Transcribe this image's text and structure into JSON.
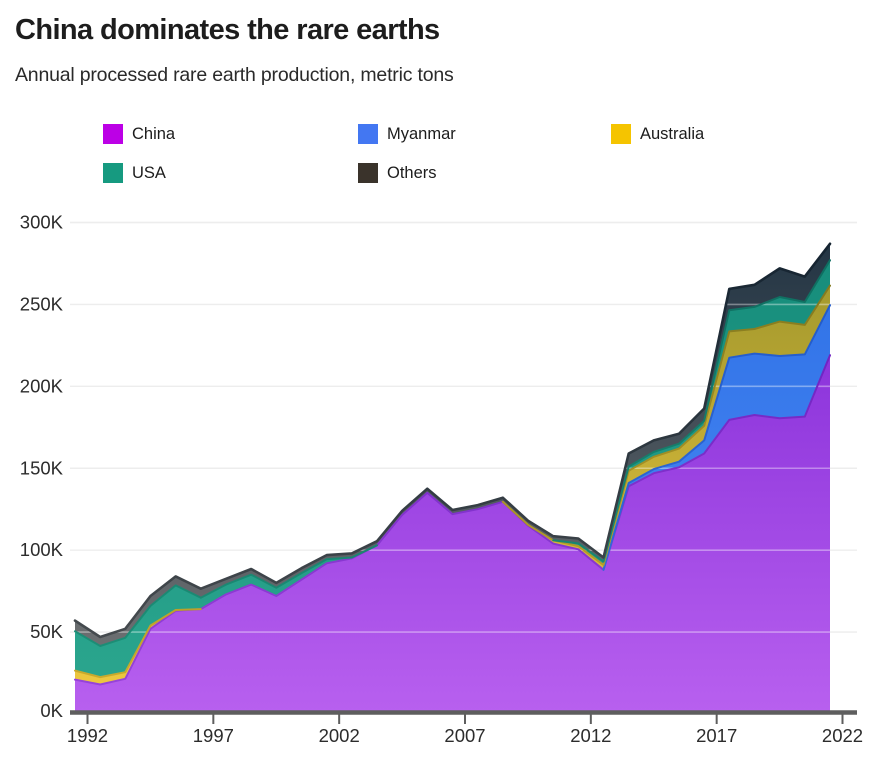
{
  "header": {
    "title": "China dominates the rare earths",
    "subtitle": "Annual processed rare earth production, metric tons"
  },
  "legend": [
    {
      "label": "China",
      "swatch": "#bc00e6"
    },
    {
      "label": "Myanmar",
      "swatch": "#4377f2"
    },
    {
      "label": "Australia",
      "swatch": "#f5c400"
    },
    {
      "label": "USA",
      "swatch": "#169a80"
    },
    {
      "label": "Others",
      "swatch": "#3a332b"
    }
  ],
  "chart_data": {
    "type": "area",
    "stacked": true,
    "title": "China dominates the rare earths",
    "subtitle": "Annual processed rare earth production, metric tons",
    "unit": "thousand metric tons",
    "grid": "horizontal",
    "legend_position": "top",
    "x": [
      1992,
      1993,
      1994,
      1995,
      1996,
      1997,
      1998,
      1999,
      2000,
      2001,
      2002,
      2003,
      2004,
      2005,
      2006,
      2007,
      2008,
      2009,
      2010,
      2011,
      2012,
      2013,
      2014,
      2015,
      2016,
      2017,
      2018,
      2019,
      2020,
      2021,
      2022
    ],
    "x_ticks": [
      1992,
      1997,
      2002,
      2007,
      2012,
      2017,
      2022
    ],
    "y_tick_values": [
      0,
      50,
      100,
      150,
      200,
      250,
      300
    ],
    "y_tick_labels": [
      "0K",
      "50K",
      "100K",
      "150K",
      "200K",
      "250K",
      "300K"
    ],
    "ylim": [
      0,
      300
    ],
    "series": [
      {
        "name": "China",
        "values": [
          21,
          18,
          21.5,
          52,
          63,
          64,
          73,
          79,
          72,
          82,
          92,
          95,
          103,
          121.5,
          135,
          122,
          125,
          129.5,
          115,
          104,
          100.5,
          88,
          139,
          147,
          150.5,
          159,
          179.5,
          182.5,
          180.5,
          181.5,
          219
        ],
        "fill_top": "#7a22d3",
        "fill_bottom": "#b860ef",
        "edge_top": "#5f16b8",
        "edge_bottom": "#9a46db"
      },
      {
        "name": "Myanmar",
        "values": [
          0,
          0,
          0,
          0,
          0,
          0,
          0,
          0,
          0,
          0,
          0,
          0,
          0,
          0,
          0,
          0,
          0,
          0,
          0,
          0,
          0,
          0,
          2,
          2.5,
          3.5,
          8,
          38,
          37.5,
          38,
          38,
          30.5
        ],
        "fill_top": "#2b6ee4",
        "fill_bottom": "#4f8df7",
        "edge_top": "#1c55c6",
        "edge_bottom": "#3a72de"
      },
      {
        "name": "Australia",
        "values": [
          5.5,
          4.5,
          4,
          2,
          0.5,
          0,
          0,
          0,
          0,
          0,
          0,
          0,
          0,
          0,
          0,
          0,
          0,
          0,
          0.5,
          2,
          2,
          3,
          7.5,
          7.5,
          8,
          9,
          16,
          15,
          21,
          18,
          12
        ],
        "fill_top": "#97912a",
        "fill_bottom": "#f2ca40",
        "edge_top": "#76701c",
        "edge_bottom": "#cfae2e"
      },
      {
        "name": "USA",
        "values": [
          24,
          19,
          21,
          12,
          15,
          7,
          6,
          6,
          5,
          4,
          2.5,
          0.5,
          0,
          0,
          0,
          0,
          0,
          0,
          0,
          0,
          1.6,
          2,
          2.5,
          3,
          3,
          3,
          13,
          13.5,
          15,
          14,
          15.5
        ],
        "fill_top": "#148a79",
        "fill_bottom": "#2ca78f",
        "edge_top": "#0c6a5e",
        "edge_bottom": "#1f937a"
      },
      {
        "name": "Others",
        "values": [
          6.5,
          5.5,
          5.5,
          6,
          5.5,
          5.5,
          3.5,
          3.5,
          3,
          3,
          2.5,
          2.5,
          2.5,
          2.5,
          2.5,
          2.5,
          2.5,
          2.5,
          2.5,
          2.5,
          3,
          2.5,
          8,
          7,
          6,
          7.5,
          13,
          13.5,
          17.5,
          15.5,
          10
        ],
        "fill_top": "#1d3040",
        "fill_bottom": "#787878",
        "edge_top": "#10202e",
        "edge_bottom": "#4f5254"
      }
    ]
  },
  "axis_style": {
    "axis_line_color": "#5e5e5e",
    "grid_under_color": "#e3e3e3",
    "grid_over_color": "rgba(255,255,255,0.38)",
    "tick_label_color": "#2c2c2c"
  }
}
